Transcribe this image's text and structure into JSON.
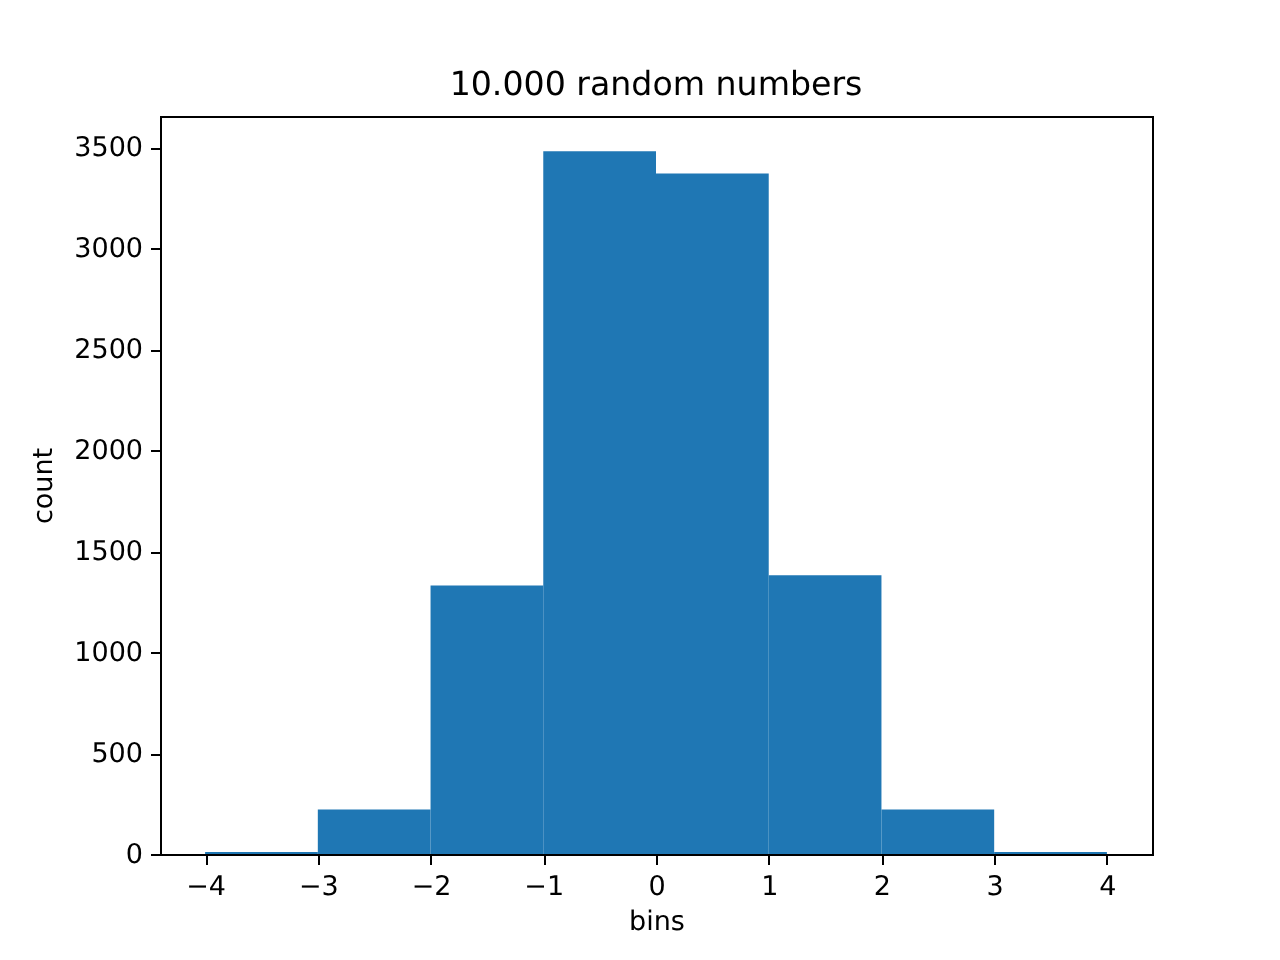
{
  "chart_data": {
    "type": "histogram",
    "title": "10.000 random numbers",
    "xlabel": "bins",
    "ylabel": "count",
    "bins": [
      -4,
      -3,
      -2,
      -1,
      0,
      1,
      2,
      3,
      4
    ],
    "values": [
      10,
      220,
      1330,
      3480,
      3370,
      1380,
      220,
      10
    ],
    "color": "#1f77b4",
    "xlim": [
      -4.4,
      4.4
    ],
    "xticks": [
      -4,
      -3,
      -2,
      -1,
      0,
      1,
      2,
      3,
      4
    ],
    "ylim": [
      0,
      3655
    ],
    "yticks": [
      0,
      500,
      1000,
      1500,
      2000,
      2500,
      3000,
      3500
    ]
  }
}
